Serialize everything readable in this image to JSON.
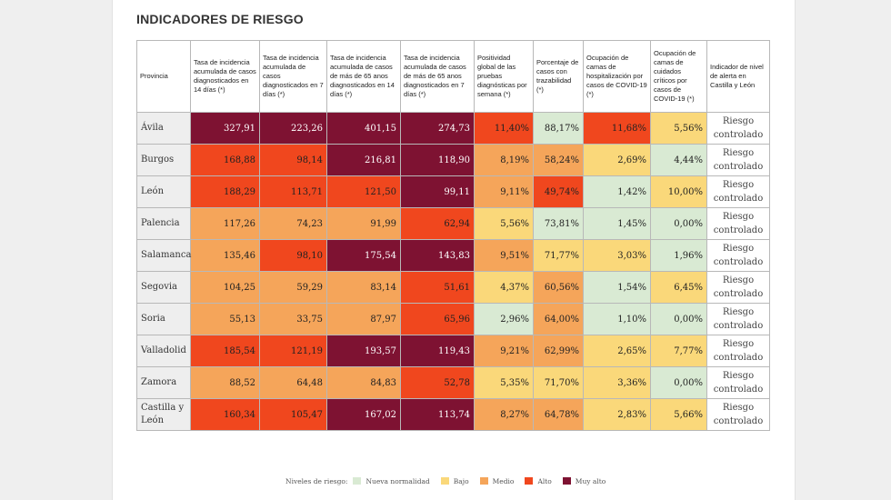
{
  "title": "INDICADORES DE RIESGO",
  "headers": [
    "Provincia",
    "Tasa de incidencia acumulada de casos diagnosticados en 14 días (*)",
    "Tasa de incidencia acumulada de casos diagnosticados en 7 días (*)",
    "Tasa de incidencia acumulada de casos de más de 65 anos diagnosticados en 14 días (*)",
    "Tasa de incidencia acumulada de casos de más de 65 anos diagnosticados en 7 días (*)",
    "Positividad global de las pruebas diagnósticas por semana (*)",
    "Porcentaje de casos con trazabilidad (*)",
    "Ocupación de camas de hospitalización por casos de COVID-19 (*)",
    "Ocupación de camas de cuidados críticos por casos de COVID-19 (*)",
    "Indicador de nivel de alerta en Castilla y León"
  ],
  "colors": {
    "nueva": "#d9ead3",
    "bajo": "#fad87a",
    "medio": "#f5a55a",
    "alto": "#f0471e",
    "muy_alto": "#7e1232"
  },
  "rows": [
    {
      "prov": "Ávila",
      "vals": [
        "327,91",
        "223,26",
        "401,15",
        "274,73",
        "11,40%",
        "88,17%",
        "11,68%",
        "5,56%"
      ],
      "lv": [
        "muy_alto",
        "muy_alto",
        "muy_alto",
        "muy_alto",
        "alto",
        "nueva",
        "alto",
        "bajo"
      ],
      "alert": "Riesgo controlado"
    },
    {
      "prov": "Burgos",
      "vals": [
        "168,88",
        "98,14",
        "216,81",
        "118,90",
        "8,19%",
        "58,24%",
        "2,69%",
        "4,44%"
      ],
      "lv": [
        "alto",
        "alto",
        "muy_alto",
        "muy_alto",
        "medio",
        "medio",
        "bajo",
        "nueva"
      ],
      "alert": "Riesgo controlado"
    },
    {
      "prov": "León",
      "vals": [
        "188,29",
        "113,71",
        "121,50",
        "99,11",
        "9,11%",
        "49,74%",
        "1,42%",
        "10,00%"
      ],
      "lv": [
        "alto",
        "alto",
        "alto",
        "muy_alto",
        "medio",
        "alto",
        "nueva",
        "bajo"
      ],
      "alert": "Riesgo controlado"
    },
    {
      "prov": "Palencia",
      "vals": [
        "117,26",
        "74,23",
        "91,99",
        "62,94",
        "5,56%",
        "73,81%",
        "1,45%",
        "0,00%"
      ],
      "lv": [
        "medio",
        "medio",
        "medio",
        "alto",
        "bajo",
        "nueva",
        "nueva",
        "nueva"
      ],
      "alert": "Riesgo controlado"
    },
    {
      "prov": "Salamanca",
      "vals": [
        "135,46",
        "98,10",
        "175,54",
        "143,83",
        "9,51%",
        "71,77%",
        "3,03%",
        "1,96%"
      ],
      "lv": [
        "medio",
        "alto",
        "muy_alto",
        "muy_alto",
        "medio",
        "bajo",
        "bajo",
        "nueva"
      ],
      "alert": "Riesgo controlado"
    },
    {
      "prov": "Segovia",
      "vals": [
        "104,25",
        "59,29",
        "83,14",
        "51,61",
        "4,37%",
        "60,56%",
        "1,54%",
        "6,45%"
      ],
      "lv": [
        "medio",
        "medio",
        "medio",
        "alto",
        "bajo",
        "medio",
        "nueva",
        "bajo"
      ],
      "alert": "Riesgo controlado"
    },
    {
      "prov": "Soria",
      "vals": [
        "55,13",
        "33,75",
        "87,97",
        "65,96",
        "2,96%",
        "64,00%",
        "1,10%",
        "0,00%"
      ],
      "lv": [
        "medio",
        "medio",
        "medio",
        "alto",
        "nueva",
        "medio",
        "nueva",
        "nueva"
      ],
      "alert": "Riesgo controlado"
    },
    {
      "prov": "Valladolid",
      "vals": [
        "185,54",
        "121,19",
        "193,57",
        "119,43",
        "9,21%",
        "62,99%",
        "2,65%",
        "7,77%"
      ],
      "lv": [
        "alto",
        "alto",
        "muy_alto",
        "muy_alto",
        "medio",
        "medio",
        "bajo",
        "bajo"
      ],
      "alert": "Riesgo controlado"
    },
    {
      "prov": "Zamora",
      "vals": [
        "88,52",
        "64,48",
        "84,83",
        "52,78",
        "5,35%",
        "71,70%",
        "3,36%",
        "0,00%"
      ],
      "lv": [
        "medio",
        "medio",
        "medio",
        "alto",
        "bajo",
        "bajo",
        "bajo",
        "nueva"
      ],
      "alert": "Riesgo controlado"
    },
    {
      "prov": "Castilla y León",
      "vals": [
        "160,34",
        "105,47",
        "167,02",
        "113,74",
        "8,27%",
        "64,78%",
        "2,83%",
        "5,66%"
      ],
      "lv": [
        "alto",
        "alto",
        "muy_alto",
        "muy_alto",
        "medio",
        "medio",
        "bajo",
        "bajo"
      ],
      "alert": "Riesgo controlado"
    }
  ],
  "legend": {
    "title": "Niveles de riesgo:",
    "items": [
      {
        "label": "Nueva normalidad",
        "key": "nueva"
      },
      {
        "label": "Bajo",
        "key": "bajo"
      },
      {
        "label": "Medio",
        "key": "medio"
      },
      {
        "label": "Alto",
        "key": "alto"
      },
      {
        "label": "Muy alto",
        "key": "muy_alto"
      }
    ]
  }
}
